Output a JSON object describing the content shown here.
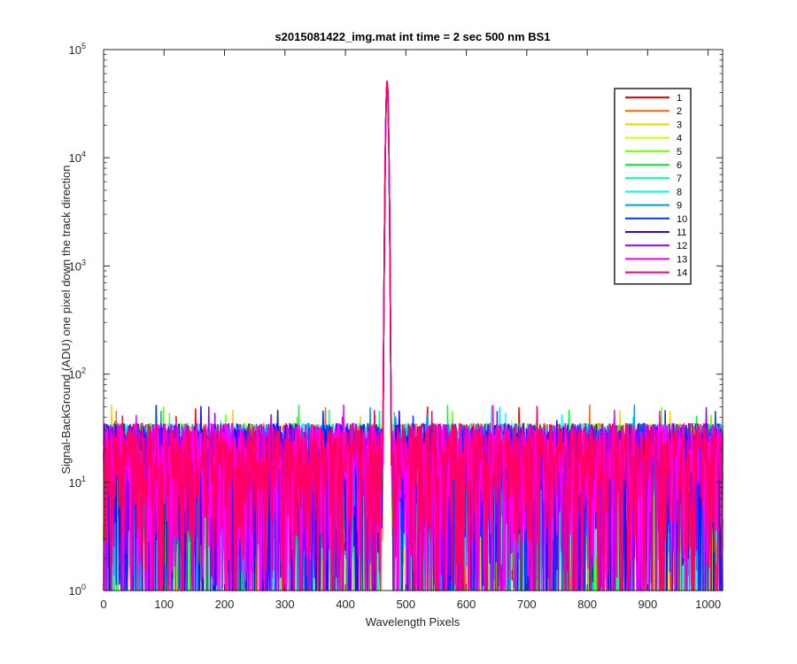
{
  "chart_data": {
    "type": "line",
    "title": "s2015081422_img.mat int time = 2 sec  500 nm BS1",
    "xlabel": "Wavelength Pixels",
    "ylabel": "Signal-BackGround (ADU) one pixel down the track direction",
    "xlim": [
      0,
      1024
    ],
    "ylim": [
      1,
      100000
    ],
    "yscale": "log",
    "x_ticks": [
      "0",
      "100",
      "200",
      "300",
      "400",
      "500",
      "600",
      "700",
      "800",
      "900",
      "1000"
    ],
    "y_ticks": [
      {
        "base": "10",
        "exp": "0"
      },
      {
        "base": "10",
        "exp": "1"
      },
      {
        "base": "10",
        "exp": "2"
      },
      {
        "base": "10",
        "exp": "3"
      },
      {
        "base": "10",
        "exp": "4"
      },
      {
        "base": "10",
        "exp": "5"
      }
    ],
    "legend_position": "top-right",
    "grid": false,
    "peak": {
      "x": 469,
      "y": 50000
    },
    "noise_level": {
      "typical_min": 1,
      "typical_max": 35,
      "max_spike": 52
    },
    "series": [
      {
        "name": "1",
        "color": "#ff0000"
      },
      {
        "name": "2",
        "color": "#ff6600"
      },
      {
        "name": "3",
        "color": "#ffcc00"
      },
      {
        "name": "4",
        "color": "#ccff00"
      },
      {
        "name": "5",
        "color": "#66ff00"
      },
      {
        "name": "6",
        "color": "#00ff33"
      },
      {
        "name": "7",
        "color": "#00ff99"
      },
      {
        "name": "8",
        "color": "#00ffff"
      },
      {
        "name": "9",
        "color": "#0099ff"
      },
      {
        "name": "10",
        "color": "#0033ff"
      },
      {
        "name": "11",
        "color": "#3300ff"
      },
      {
        "name": "12",
        "color": "#9900ff"
      },
      {
        "name": "13",
        "color": "#ff00ff"
      },
      {
        "name": "14",
        "color": "#ff0066"
      }
    ]
  }
}
